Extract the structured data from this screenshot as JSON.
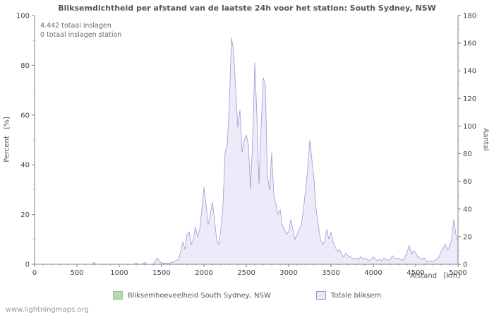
{
  "page": {
    "watermark": "www.lightningmaps.org"
  },
  "chart_data": {
    "type": "area",
    "title": "Bliksemdichtheid per afstand van de laatste 24h voor het station: South Sydney, NSW",
    "annotations": {
      "line1": "4.442 totaal inslagen",
      "line2": "0 totaal inslagen station"
    },
    "xlabel": "Afstand   [km]",
    "ylabel_left": "Percent   [%]",
    "ylabel_right": "Aantal",
    "xlim": [
      0,
      5000
    ],
    "ylim_left": [
      0,
      100
    ],
    "ylim_right": [
      0,
      180
    ],
    "x_ticks": [
      0,
      500,
      1000,
      1500,
      2000,
      2500,
      3000,
      3500,
      4000,
      4500,
      5000
    ],
    "y_ticks_left": [
      0,
      20,
      40,
      60,
      80,
      100
    ],
    "y_ticks_right": [
      0,
      20,
      40,
      60,
      80,
      100,
      120,
      140,
      160,
      180
    ],
    "grid": false,
    "legend_position": "bottom",
    "legend": [
      {
        "label": "Bliksemhoeveelheid South Sydney, NSW",
        "color": "#b7d9b0",
        "border": "#94c294"
      },
      {
        "label": "Totale bliksem",
        "color": "#e9e9f8",
        "border": "#9b9bd4"
      }
    ],
    "series": [
      {
        "name": "Totale bliksem",
        "unit": "percent_left_axis",
        "fill": "#e9e9f8",
        "stroke": "#9b9bd4",
        "x_start": 0,
        "x_step": 25,
        "values": [
          0,
          0,
          0,
          0,
          0,
          0,
          0,
          0,
          0,
          0,
          0,
          0,
          0,
          0,
          0,
          0,
          0,
          0,
          0,
          0,
          0,
          0,
          0,
          0,
          0,
          0,
          0,
          0,
          0.8,
          0,
          0,
          0,
          0,
          0,
          0,
          0,
          0,
          0,
          0,
          0,
          0,
          0,
          0,
          0,
          0,
          0,
          0,
          0,
          0.5,
          0,
          0,
          0,
          0.8,
          0,
          0,
          0,
          0,
          1.5,
          2.5,
          1.2,
          0.5,
          0.3,
          0.5,
          0.3,
          0.5,
          0.8,
          1,
          1.5,
          2,
          5,
          9,
          6,
          12,
          13,
          8,
          10,
          15,
          11,
          14,
          22,
          31,
          24,
          16,
          20,
          25,
          18,
          10,
          8,
          14,
          24,
          45,
          48,
          65,
          91,
          86,
          70,
          55,
          62,
          45,
          50,
          52,
          48,
          30,
          50,
          81,
          60,
          32,
          55,
          75,
          72,
          35,
          30,
          45,
          28,
          24,
          20,
          22,
          16,
          14,
          12,
          13,
          18,
          14,
          10,
          12,
          14,
          16,
          22,
          30,
          38,
          50,
          42,
          34,
          22,
          16,
          10,
          8,
          9,
          14,
          10,
          13,
          9,
          7,
          5,
          6,
          4,
          3,
          4.5,
          3.5,
          3,
          2.5,
          2,
          2.5,
          2,
          3,
          2,
          2.5,
          2,
          1.5,
          2,
          3,
          2,
          1.5,
          2,
          1.5,
          2.5,
          2,
          1.5,
          2,
          3.5,
          2.5,
          2,
          2.5,
          2,
          1.5,
          3,
          5,
          7.5,
          4,
          5.5,
          4.5,
          3,
          2.5,
          2,
          2.5,
          1.5,
          1,
          1.5,
          1,
          1.5,
          2,
          3,
          5,
          6.5,
          8,
          6,
          7,
          10,
          18,
          12,
          9
        ]
      }
    ]
  }
}
